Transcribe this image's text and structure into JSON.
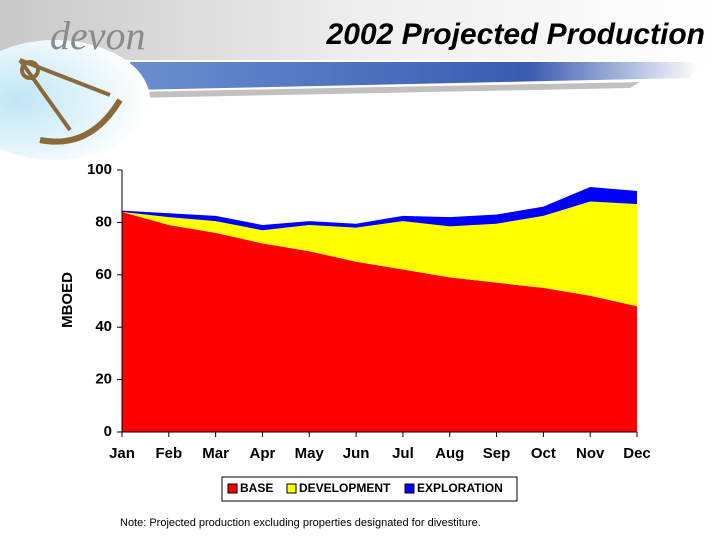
{
  "header": {
    "logo": "devon",
    "title": "2002 Projected Production"
  },
  "note": "Note:  Projected production excluding properties designated for divestiture.",
  "chart_data": {
    "type": "stacked_area",
    "y_label": "MBOED",
    "categories": [
      "Jan",
      "Feb",
      "Mar",
      "Apr",
      "May",
      "Jun",
      "Jul",
      "Aug",
      "Sep",
      "Oct",
      "Nov",
      "Dec"
    ],
    "series": [
      {
        "name": "BASE",
        "color": "#ff0000",
        "values": [
          84,
          79,
          76,
          72,
          69,
          65,
          62,
          59,
          57,
          55,
          52,
          48
        ]
      },
      {
        "name": "DEVELOPMENT",
        "color": "#ffff00",
        "values": [
          0,
          3,
          4.5,
          5,
          10,
          13,
          18.5,
          19.5,
          22.5,
          27.5,
          36,
          39
        ]
      },
      {
        "name": "EXPLORATION",
        "color": "#0000ff",
        "values": [
          0.5,
          1.5,
          2,
          2,
          1.5,
          1.5,
          2,
          3.5,
          3.5,
          3.5,
          5.5,
          5
        ]
      }
    ],
    "ylim": [
      0,
      100
    ],
    "yticks": [
      0,
      20,
      40,
      60,
      80,
      100
    ],
    "grid": false,
    "legend": "bottom"
  }
}
